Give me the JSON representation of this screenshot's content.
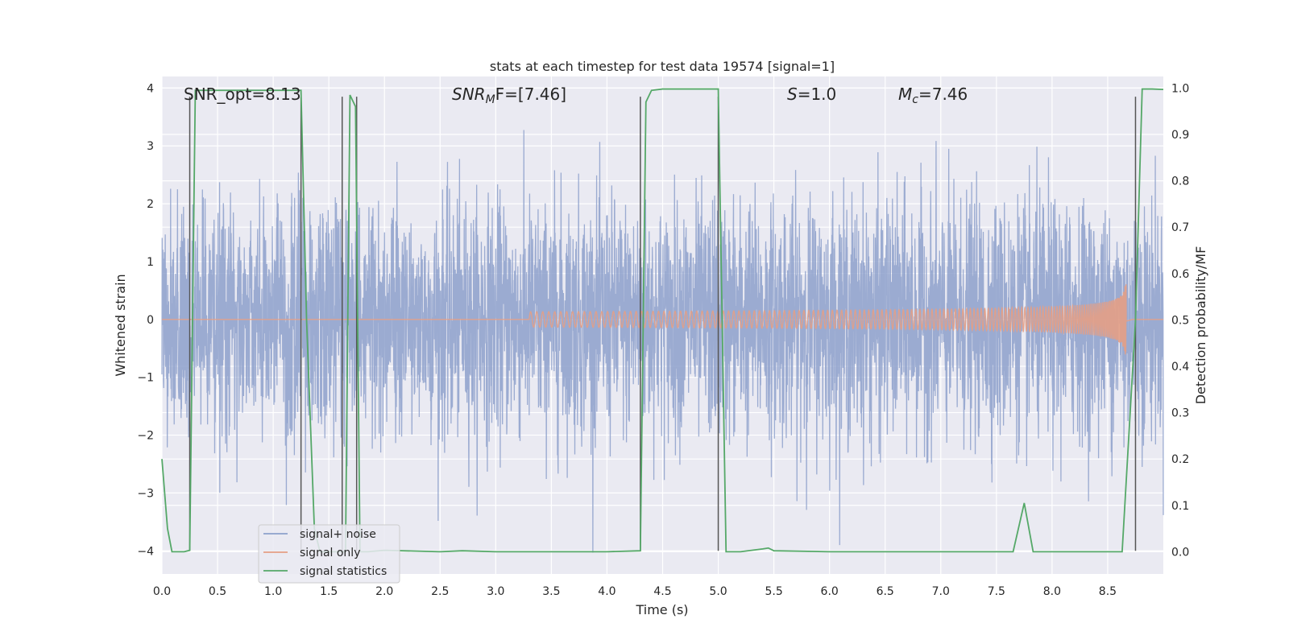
{
  "chart_data": {
    "type": "line",
    "title": "stats at each timestep for test data 19574 [signal=1]",
    "xlabel": "Time (s)",
    "ylabel": "Whitened strain",
    "ylabel_right": "Detection probability/MF",
    "xlim": [
      0,
      9
    ],
    "ylim": [
      -4.4,
      4.2
    ],
    "ylim_right": [
      -0.048,
      1.025
    ],
    "x_ticks": [
      "0.0",
      "0.5",
      "1.0",
      "1.5",
      "2.0",
      "2.5",
      "3.0",
      "3.5",
      "4.0",
      "4.5",
      "5.0",
      "5.5",
      "6.0",
      "6.5",
      "7.0",
      "7.5",
      "8.0",
      "8.5"
    ],
    "y_ticks": [
      "4",
      "3",
      "2",
      "1",
      "0",
      "−1",
      "−2",
      "−3",
      "−4"
    ],
    "y_ticks_right": [
      "1.0",
      "0.9",
      "0.8",
      "0.7",
      "0.6",
      "0.5",
      "0.4",
      "0.3",
      "0.2",
      "0.1",
      "0.0"
    ],
    "annotations": {
      "snr_opt": "SNR_opt=8.13",
      "snr_mf_main": "SNR",
      "snr_mf_sub": "M",
      "snr_mf_tail": "F=[7.46]",
      "s_main": "S",
      "s_tail": "=1.0",
      "mc_main": "M",
      "mc_sub": "c",
      "mc_tail": "=7.46"
    },
    "legend": {
      "placement": "lower-left",
      "entries": [
        "signal+ noise",
        "signal only",
        "signal statistics"
      ]
    },
    "series": [
      {
        "name": "signal+ noise",
        "color": "#8da0cb",
        "noise_amplitude": 1.0
      },
      {
        "name": "signal only",
        "color": "#e49e85",
        "chirp_start": 4.3,
        "chirp_peak_time": 8.67,
        "chirp_peak_value": 1.1
      },
      {
        "name": "signal statistics",
        "color": "#55a868",
        "x": [
          0.0,
          0.05,
          0.09,
          0.2,
          0.25,
          0.3,
          0.4,
          1.0,
          1.2,
          1.25,
          1.3,
          1.37,
          1.42,
          1.6,
          1.65,
          1.69,
          1.74,
          1.78,
          1.85,
          2.0,
          2.5,
          2.7,
          3.0,
          4.0,
          4.3,
          4.35,
          4.4,
          4.5,
          4.8,
          5.0,
          5.07,
          5.2,
          5.4,
          5.45,
          5.5,
          6.0,
          7.0,
          7.65,
          7.75,
          7.83,
          8.0,
          8.5,
          8.63,
          8.75,
          8.81,
          8.9,
          9.0
        ],
        "y": [
          0.2,
          0.05,
          0.0,
          0.0,
          0.003,
          0.995,
          0.995,
          0.995,
          0.995,
          0.995,
          0.5,
          0.05,
          0.0,
          0.0,
          0.0,
          0.985,
          0.96,
          0.0,
          0.0,
          0.003,
          0.0,
          0.002,
          0.0,
          0.0,
          0.002,
          0.97,
          0.995,
          0.998,
          0.998,
          0.998,
          0.0,
          0.0,
          0.006,
          0.008,
          0.002,
          0.0,
          0.0,
          0.0,
          0.105,
          0.0,
          0.0,
          0.0,
          0.0,
          0.5,
          0.998,
          0.998,
          0.997
        ]
      }
    ],
    "vertical_lines": [
      {
        "x": 0.25,
        "y_top": 3.85,
        "y_bottom": -4.0
      },
      {
        "x": 1.25,
        "y_top": 3.85,
        "y_bottom": -4.0
      },
      {
        "x": 1.62,
        "y_top": 3.85,
        "y_bottom": -4.0
      },
      {
        "x": 1.75,
        "y_top": 3.85,
        "y_bottom": -4.0
      },
      {
        "x": 4.3,
        "y_top": 3.85,
        "y_bottom": -4.0
      },
      {
        "x": 5.0,
        "y_top": 3.85,
        "y_bottom": -4.0
      },
      {
        "x": 8.75,
        "y_top": 3.85,
        "y_bottom": -4.0
      }
    ],
    "background_color": "#eaeaf2",
    "grid": true
  }
}
